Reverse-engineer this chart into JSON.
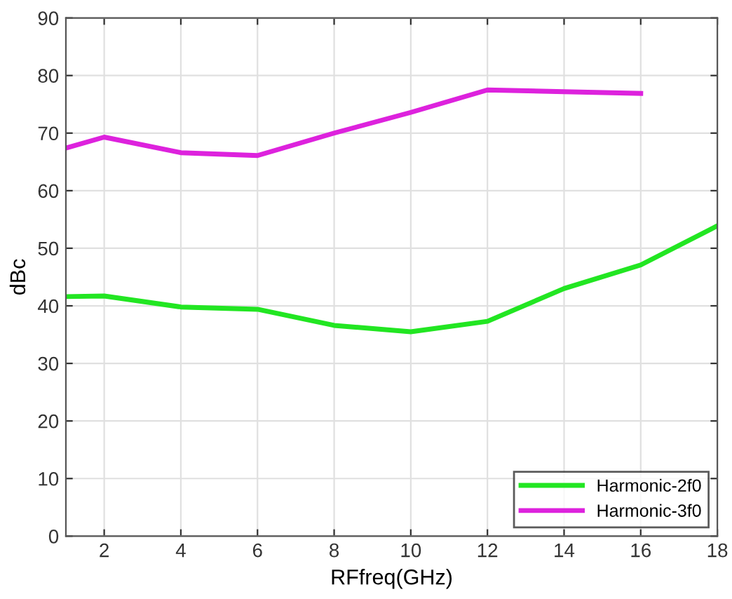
{
  "chart_data": {
    "type": "line",
    "xlabel": "RFfreq(GHz)",
    "ylabel": "dBc",
    "xlim": [
      1,
      18
    ],
    "xticks": [
      2,
      4,
      6,
      8,
      10,
      12,
      14,
      16,
      18
    ],
    "ylim": [
      0,
      90
    ],
    "yticks": [
      0,
      10,
      20,
      30,
      40,
      50,
      60,
      70,
      80,
      90
    ],
    "grid": true,
    "legend": "bottom right",
    "line_style": "solid",
    "series": [
      {
        "name": "Harmonic-2f0",
        "color": "#22e622",
        "x": [
          1,
          2,
          4,
          6,
          8,
          10,
          12,
          14,
          16,
          18
        ],
        "values": [
          41.6,
          41.7,
          39.8,
          39.4,
          36.6,
          35.5,
          37.3,
          43.0,
          47.1,
          53.9
        ]
      },
      {
        "name": "Harmonic-3f0",
        "color": "#dd22dd",
        "x": [
          1,
          2,
          4,
          6,
          8,
          10,
          12,
          14,
          16
        ],
        "values": [
          67.4,
          69.3,
          66.6,
          66.1,
          70.0,
          73.6,
          77.5,
          77.2,
          76.9
        ]
      }
    ]
  }
}
